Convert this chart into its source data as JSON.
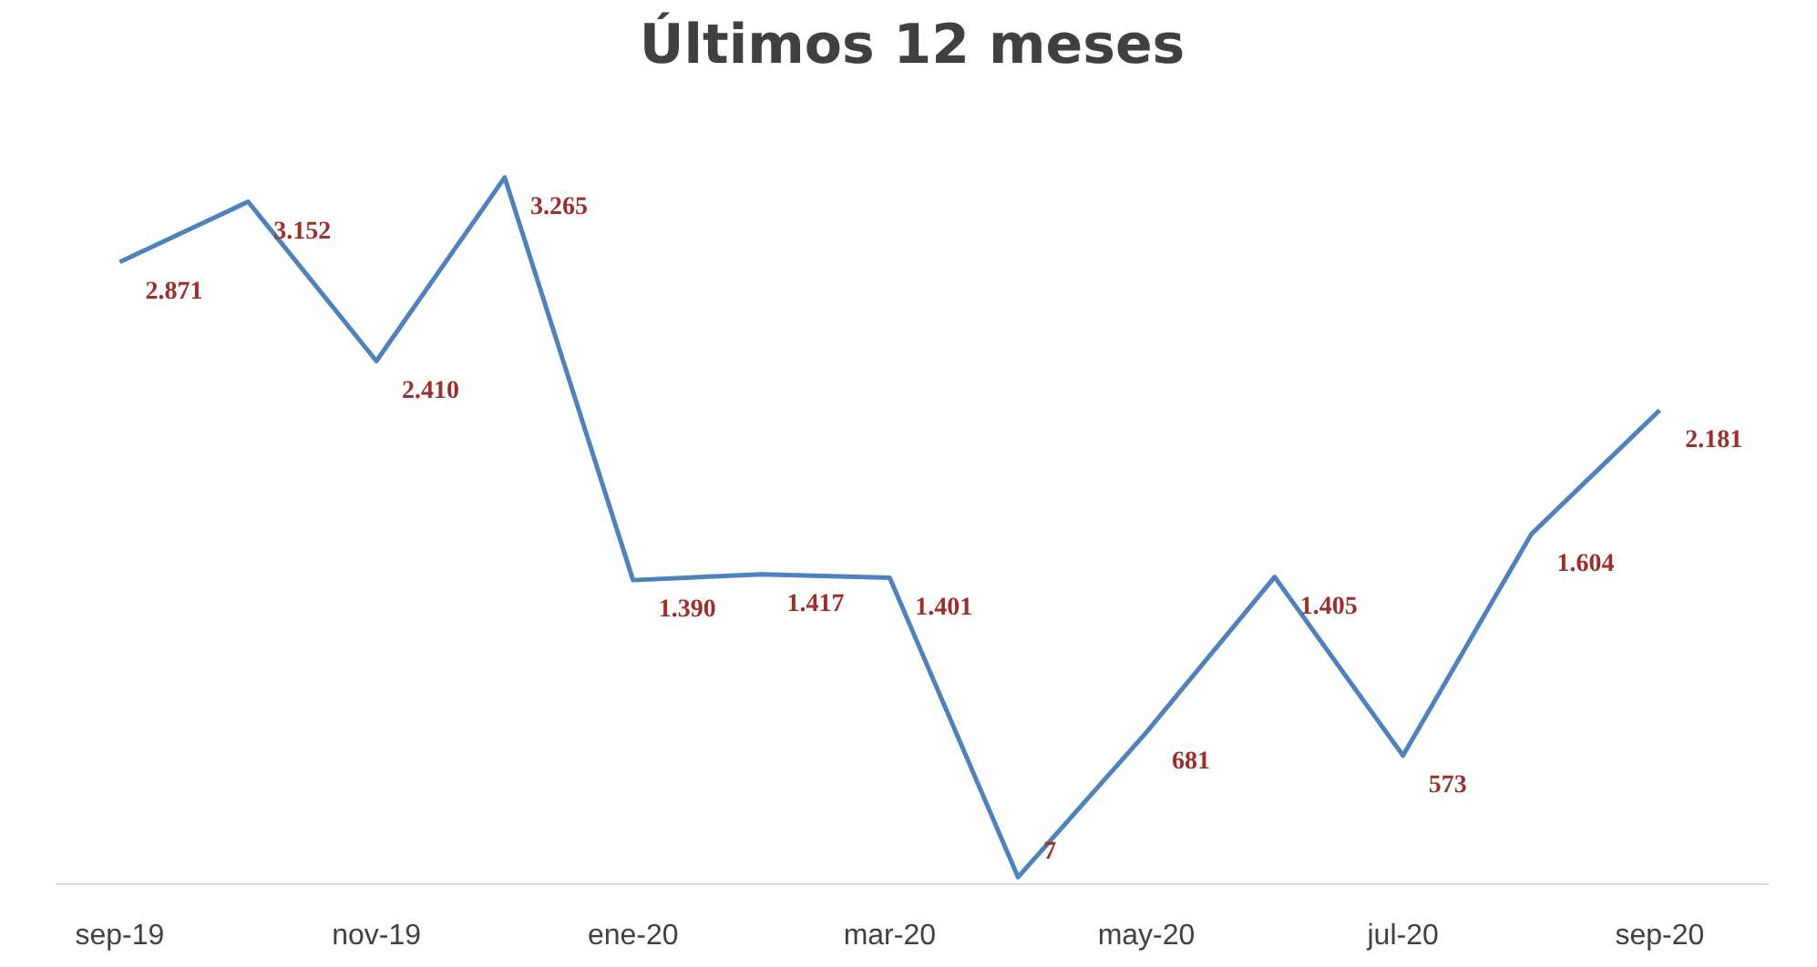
{
  "chart_data": {
    "type": "line",
    "title": "Últimos 12 meses",
    "categories": [
      "sep-19",
      null,
      "nov-19",
      null,
      "ene-20",
      null,
      "mar-20",
      null,
      "may-20",
      null,
      "jul-20",
      null,
      "sep-20"
    ],
    "series": [
      {
        "color": "#4f81bd",
        "values": [
          2871,
          3152,
          2410,
          3265,
          1390,
          1417,
          1401,
          7,
          681,
          1405,
          573,
          1604,
          2181
        ],
        "value_labels": [
          "2.871",
          "3.152",
          "2.410",
          "3.265",
          "1.390",
          "1.417",
          "1.401",
          "7",
          "681",
          "1.405",
          "573",
          "1.604",
          "2.181"
        ]
      }
    ],
    "data_labels": true,
    "grid": false,
    "marker": "none",
    "line_style": "solid"
  }
}
